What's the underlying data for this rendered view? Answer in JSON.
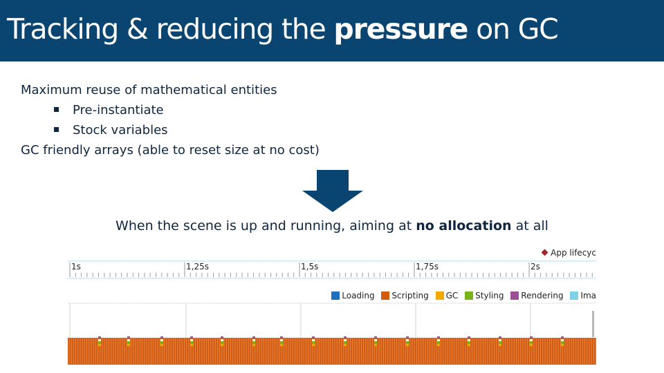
{
  "slide": {
    "title_prefix": "Tracking & reducing the ",
    "title_bold": "pressure",
    "title_suffix": " on GC",
    "bullets": [
      "Maximum reuse of mathematical entities",
      "Pre-instantiate",
      "Stock variables",
      "GC friendly arrays (able to reset size at no cost)"
    ],
    "caption_prefix": "When the scene is up and running, aiming at ",
    "caption_bold": "no allocation",
    "caption_suffix": " at all"
  },
  "timeline": {
    "marker_label": "App lifecyc",
    "ticks": [
      "1s",
      "1,25s",
      "1,5s",
      "1,75s",
      "2s"
    ],
    "legend": [
      {
        "label": "Loading",
        "color": "#1f6fc1"
      },
      {
        "label": "Scripting",
        "color": "#d65a0c"
      },
      {
        "label": "GC",
        "color": "#f2a900"
      },
      {
        "label": "Styling",
        "color": "#7ab317"
      },
      {
        "label": "Rendering",
        "color": "#9b4f96"
      },
      {
        "label": "Ima",
        "color": "#7fd0ea"
      }
    ],
    "colors": {
      "scripting": "#d65a0c",
      "rendering": "#9b4f96",
      "styling": "#7ab317",
      "gc": "#f2a900"
    }
  },
  "colors": {
    "title_bar": "#0a4571",
    "text": "#10253f"
  }
}
